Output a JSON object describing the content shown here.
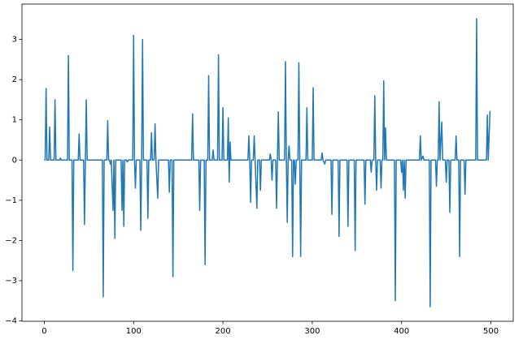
{
  "chart_data": {
    "type": "line",
    "x": [
      0,
      1,
      2,
      3,
      5,
      6,
      7,
      11,
      12,
      13,
      17,
      18,
      19,
      26,
      27,
      28,
      31,
      32,
      33,
      38,
      39,
      40,
      44,
      45,
      46,
      47,
      48,
      65,
      66,
      67,
      70,
      71,
      72,
      73,
      74,
      75,
      77,
      78,
      79,
      80,
      86,
      87,
      88,
      89,
      90,
      92,
      93,
      94,
      99,
      100,
      101,
      102,
      103,
      107,
      108,
      109,
      110,
      111,
      115,
      116,
      117,
      119,
      120,
      121,
      123,
      124,
      125,
      127,
      128,
      139,
      140,
      141,
      143,
      144,
      145,
      165,
      166,
      167,
      173,
      174,
      175,
      179,
      180,
      181,
      183,
      184,
      185,
      188,
      189,
      190,
      194,
      195,
      196,
      199,
      200,
      201,
      205,
      206,
      207,
      208,
      209,
      228,
      229,
      230,
      231,
      232,
      234,
      235,
      236,
      238,
      239,
      241,
      242,
      243,
      252,
      253,
      254,
      255,
      256,
      259,
      260,
      261,
      262,
      263,
      269,
      270,
      271,
      272,
      273,
      274,
      275,
      277,
      278,
      279,
      280,
      281,
      282,
      284,
      285,
      286,
      287,
      288,
      293,
      294,
      295,
      300,
      301,
      302,
      310,
      311,
      312,
      314,
      315,
      321,
      322,
      323,
      329,
      330,
      331,
      339,
      340,
      341,
      347,
      348,
      349,
      358,
      359,
      360,
      365,
      366,
      367,
      369,
      370,
      371,
      372,
      373,
      376,
      377,
      378,
      379,
      380,
      381,
      382,
      383,
      392,
      393,
      394,
      399,
      400,
      401,
      402,
      403,
      404,
      405,
      420,
      421,
      422,
      424,
      425,
      431,
      432,
      433,
      438,
      439,
      440,
      441,
      442,
      443,
      445,
      446,
      449,
      450,
      451,
      453,
      454,
      455,
      460,
      461,
      462,
      464,
      465,
      466,
      470,
      471,
      472,
      483,
      484,
      485,
      495,
      496,
      497,
      499
    ],
    "series": [
      {
        "color": "#1f77b4",
        "values": [
          0,
          0,
          1.78,
          0,
          0,
          0.82,
          0,
          0,
          1.5,
          0,
          0,
          0.05,
          0,
          0,
          2.6,
          0,
          0,
          -2.75,
          0,
          0,
          0.65,
          0,
          0,
          -1.6,
          0,
          1.5,
          0,
          0,
          -3.4,
          0,
          0,
          0.98,
          0,
          0,
          -0.1,
          0,
          -1.25,
          0,
          -1.95,
          0,
          0,
          -1.25,
          0,
          -1.65,
          0,
          0,
          -0.05,
          0,
          0,
          3.1,
          0,
          -0.7,
          0,
          0,
          -1.75,
          0,
          3.0,
          0,
          0,
          -1.45,
          0,
          0,
          0.68,
          0,
          0,
          0.9,
          0,
          -0.95,
          0,
          0,
          -0.8,
          0,
          0,
          -2.9,
          0,
          0,
          1.15,
          0,
          0,
          -1.25,
          0,
          0,
          -2.6,
          0,
          0,
          2.1,
          0,
          0,
          0.25,
          0,
          0,
          2.62,
          0,
          0,
          1.3,
          0,
          0,
          1.05,
          -0.55,
          0.45,
          0,
          0,
          0.6,
          0,
          -1.05,
          0,
          0,
          0.6,
          0,
          -1.2,
          0,
          0,
          -0.75,
          0,
          0,
          0.15,
          0,
          -0.5,
          0,
          0,
          -1.2,
          0,
          1.2,
          0,
          0,
          2.45,
          0,
          -1.55,
          0,
          0.35,
          0,
          0,
          -2.4,
          0,
          0,
          -0.6,
          0,
          0,
          2.42,
          0,
          -2.4,
          0,
          0,
          1.3,
          0,
          0,
          1.8,
          0,
          0,
          0.18,
          0,
          -0.1,
          0,
          0,
          -1.35,
          0,
          0,
          -1.9,
          0,
          0,
          -1.65,
          0,
          0,
          -2.25,
          0,
          0,
          -1.1,
          0,
          0,
          -0.3,
          0,
          0,
          1.6,
          0,
          -0.75,
          0,
          0,
          -0.7,
          0,
          0,
          1.97,
          0,
          0.8,
          0,
          0,
          -3.5,
          0,
          0,
          -0.3,
          0,
          -0.75,
          0,
          -0.95,
          0,
          0,
          0.6,
          0,
          0.1,
          0,
          0,
          -3.65,
          0,
          0,
          -0.65,
          0,
          0,
          1.45,
          0,
          0.95,
          0,
          0,
          -0.55,
          0,
          0,
          -1.3,
          0,
          0,
          0.6,
          0,
          0,
          -2.4,
          0,
          0,
          -0.85,
          0,
          0,
          3.52,
          0,
          0,
          1.12,
          0,
          1.22
        ]
      }
    ],
    "xlim": [
      -25,
      525
    ],
    "ylim": [
      -4.01,
      3.88
    ],
    "xticks": [
      0,
      100,
      200,
      300,
      400,
      500
    ],
    "yticks": [
      {
        "value": -4,
        "label": "−4"
      },
      {
        "value": -3,
        "label": "−3"
      },
      {
        "value": -2,
        "label": "−2"
      },
      {
        "value": -1,
        "label": "−1"
      },
      0,
      1,
      2,
      3
    ]
  }
}
